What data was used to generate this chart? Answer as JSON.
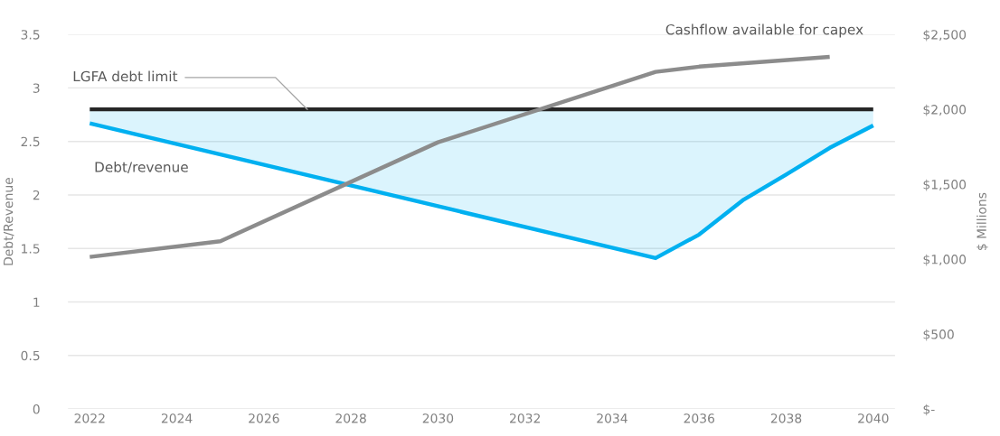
{
  "chart_data": {
    "type": "line",
    "ylabel": "Debt/Revenue",
    "y2label": "$ Millions",
    "xlim": [
      2021.5,
      2040.5
    ],
    "xticks": [
      2022,
      2024,
      2026,
      2028,
      2030,
      2032,
      2034,
      2036,
      2038,
      2040
    ],
    "ylim": [
      0,
      3.5
    ],
    "yticks": [
      0,
      0.5,
      1,
      1.5,
      2,
      2.5,
      3,
      3.5
    ],
    "y2lim": [
      0,
      2500
    ],
    "y2ticks": [
      {
        "value": 0,
        "label": "$-"
      },
      {
        "value": 500,
        "label": "$500"
      },
      {
        "value": 1000,
        "label": "$1,000"
      },
      {
        "value": 1500,
        "label": "$1,500"
      },
      {
        "value": 2000,
        "label": "$2,000"
      },
      {
        "value": 2500,
        "label": "$2,500"
      }
    ],
    "grid": "y",
    "legend": false,
    "marker": "none",
    "line_style": "solid",
    "series": [
      {
        "name": "LGFA debt limit",
        "color": "#262626",
        "x": [
          2022,
          2040
        ],
        "values": [
          2.8,
          2.8
        ]
      },
      {
        "name": "Debt/revenue",
        "color": "#00b0f0",
        "x": [
          2022,
          2035,
          2036,
          2037,
          2038,
          2039,
          2040
        ],
        "values": [
          2.67,
          1.41,
          1.63,
          1.95,
          2.19,
          2.44,
          2.65
        ],
        "lower": [
          2.67,
          1.41,
          1.63,
          1.95,
          2.19,
          2.44,
          2.65
        ],
        "upper": [
          2.8,
          2.8,
          2.8,
          2.8,
          2.8,
          2.8,
          2.8
        ]
      },
      {
        "name": "Cashflow available for capex",
        "color": "#8c8c8c",
        "axis": "y2",
        "x": [
          2022,
          2025,
          2030,
          2035,
          2036,
          2039
        ],
        "values": [
          1015,
          1120,
          1780,
          2250,
          2285,
          2350
        ]
      }
    ]
  }
}
